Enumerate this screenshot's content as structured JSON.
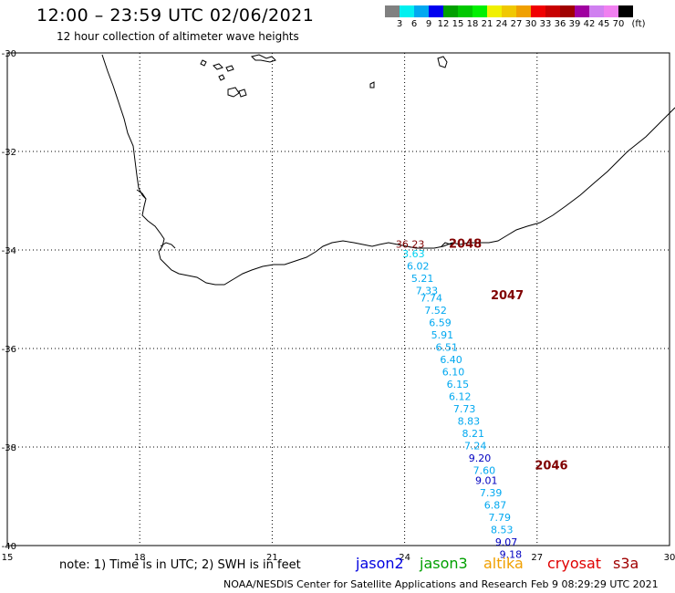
{
  "header": {
    "title": "12:00 – 23:59 UTC 02/06/2021",
    "subtitle": "12 hour collection of altimeter wave heights"
  },
  "color_scale": {
    "unit": "(ft)",
    "colors": [
      "#808080",
      "#00f0f0",
      "#00a8f0",
      "#0000f0",
      "#00a000",
      "#00c800",
      "#00f000",
      "#f0f000",
      "#f0c800",
      "#f0a000",
      "#f00000",
      "#c80000",
      "#a00000",
      "#a000a0",
      "#d080f0",
      "#f080f0",
      "#000000"
    ],
    "labels": [
      "3",
      "6",
      "9",
      "12",
      "15",
      "18",
      "21",
      "24",
      "27",
      "30",
      "33",
      "36",
      "39",
      "42",
      "45",
      "70"
    ]
  },
  "map": {
    "lon_labels": [
      "15",
      "18",
      "21",
      "24",
      "27",
      "30"
    ],
    "lat_labels": [
      "-30",
      "-32",
      "-34",
      "-36",
      "-38",
      "-40"
    ],
    "lon_range": [
      15,
      30
    ],
    "lat_range": [
      -30,
      -40
    ],
    "grid": "dotted"
  },
  "tracks": [
    {
      "label": "2048",
      "color": "#800000",
      "lon": 25.0,
      "lat": -33.95
    },
    {
      "label": "2047",
      "color": "#800000",
      "lon": 25.95,
      "lat": -35.0
    },
    {
      "label": "2046",
      "color": "#800000",
      "lon": 26.95,
      "lat": -38.45
    }
  ],
  "observations": [
    {
      "value": "36.23",
      "lon": 23.8,
      "lat": -33.95,
      "color": "#800000"
    },
    {
      "value": "3.63",
      "lon": 23.95,
      "lat": -34.15,
      "color": "#00d0f0"
    },
    {
      "value": "6.02",
      "lon": 24.05,
      "lat": -34.4,
      "color": "#00a8f0"
    },
    {
      "value": "5.21",
      "lon": 24.15,
      "lat": -34.65,
      "color": "#00a8f0"
    },
    {
      "value": "7.33",
      "lon": 24.25,
      "lat": -34.9,
      "color": "#00a8f0"
    },
    {
      "value": "7.74",
      "lon": 24.35,
      "lat": -35.05,
      "color": "#00a8f0"
    },
    {
      "value": "7.52",
      "lon": 24.45,
      "lat": -35.3,
      "color": "#00a8f0"
    },
    {
      "value": "6.59",
      "lon": 24.55,
      "lat": -35.55,
      "color": "#00a8f0"
    },
    {
      "value": "5.91",
      "lon": 24.6,
      "lat": -35.8,
      "color": "#00a8f0"
    },
    {
      "value": "6.51",
      "lon": 24.7,
      "lat": -36.05,
      "color": "#00a8f0"
    },
    {
      "value": "6.40",
      "lon": 24.8,
      "lat": -36.3,
      "color": "#00a8f0"
    },
    {
      "value": "6.10",
      "lon": 24.85,
      "lat": -36.55,
      "color": "#00a8f0"
    },
    {
      "value": "6.15",
      "lon": 24.95,
      "lat": -36.8,
      "color": "#00a8f0"
    },
    {
      "value": "6.12",
      "lon": 25.0,
      "lat": -37.05,
      "color": "#00a8f0"
    },
    {
      "value": "7.73",
      "lon": 25.1,
      "lat": -37.3,
      "color": "#00a8f0"
    },
    {
      "value": "8.83",
      "lon": 25.2,
      "lat": -37.55,
      "color": "#00a8f0"
    },
    {
      "value": "8.21",
      "lon": 25.3,
      "lat": -37.8,
      "color": "#00a8f0"
    },
    {
      "value": "7.24",
      "lon": 25.35,
      "lat": -38.05,
      "color": "#00a8f0"
    },
    {
      "value": "9.20",
      "lon": 25.45,
      "lat": -38.3,
      "color": "#0000c0"
    },
    {
      "value": "7.60",
      "lon": 25.55,
      "lat": -38.55,
      "color": "#00a8f0"
    },
    {
      "value": "9.01",
      "lon": 25.6,
      "lat": -38.75,
      "color": "#0000c0"
    },
    {
      "value": "7.39",
      "lon": 25.7,
      "lat": -39.0,
      "color": "#00a8f0"
    },
    {
      "value": "6.87",
      "lon": 25.8,
      "lat": -39.25,
      "color": "#00a8f0"
    },
    {
      "value": "7.79",
      "lon": 25.9,
      "lat": -39.5,
      "color": "#00a8f0"
    },
    {
      "value": "8.53",
      "lon": 25.95,
      "lat": -39.75,
      "color": "#00a8f0"
    },
    {
      "value": "9.07",
      "lon": 26.05,
      "lat": -40.0,
      "color": "#0000c0"
    },
    {
      "value": "9.18",
      "lon": 26.15,
      "lat": -40.25,
      "color": "#0000c0"
    }
  ],
  "footer": {
    "note": "note:  1) Time is in UTC;  2) SWH is in feet",
    "satellites": [
      {
        "name": "jason2",
        "color": "#0000e0"
      },
      {
        "name": "jason3",
        "color": "#00a000"
      },
      {
        "name": "altika",
        "color": "#f0a000"
      },
      {
        "name": "cryosat",
        "color": "#e00000"
      },
      {
        "name": "s3a",
        "color": "#a00000"
      }
    ],
    "credit": "NOAA/NESDIS Center for Satellite Applications and Research",
    "timestamp": "Feb  9 08:29:29 UTC 2021"
  }
}
